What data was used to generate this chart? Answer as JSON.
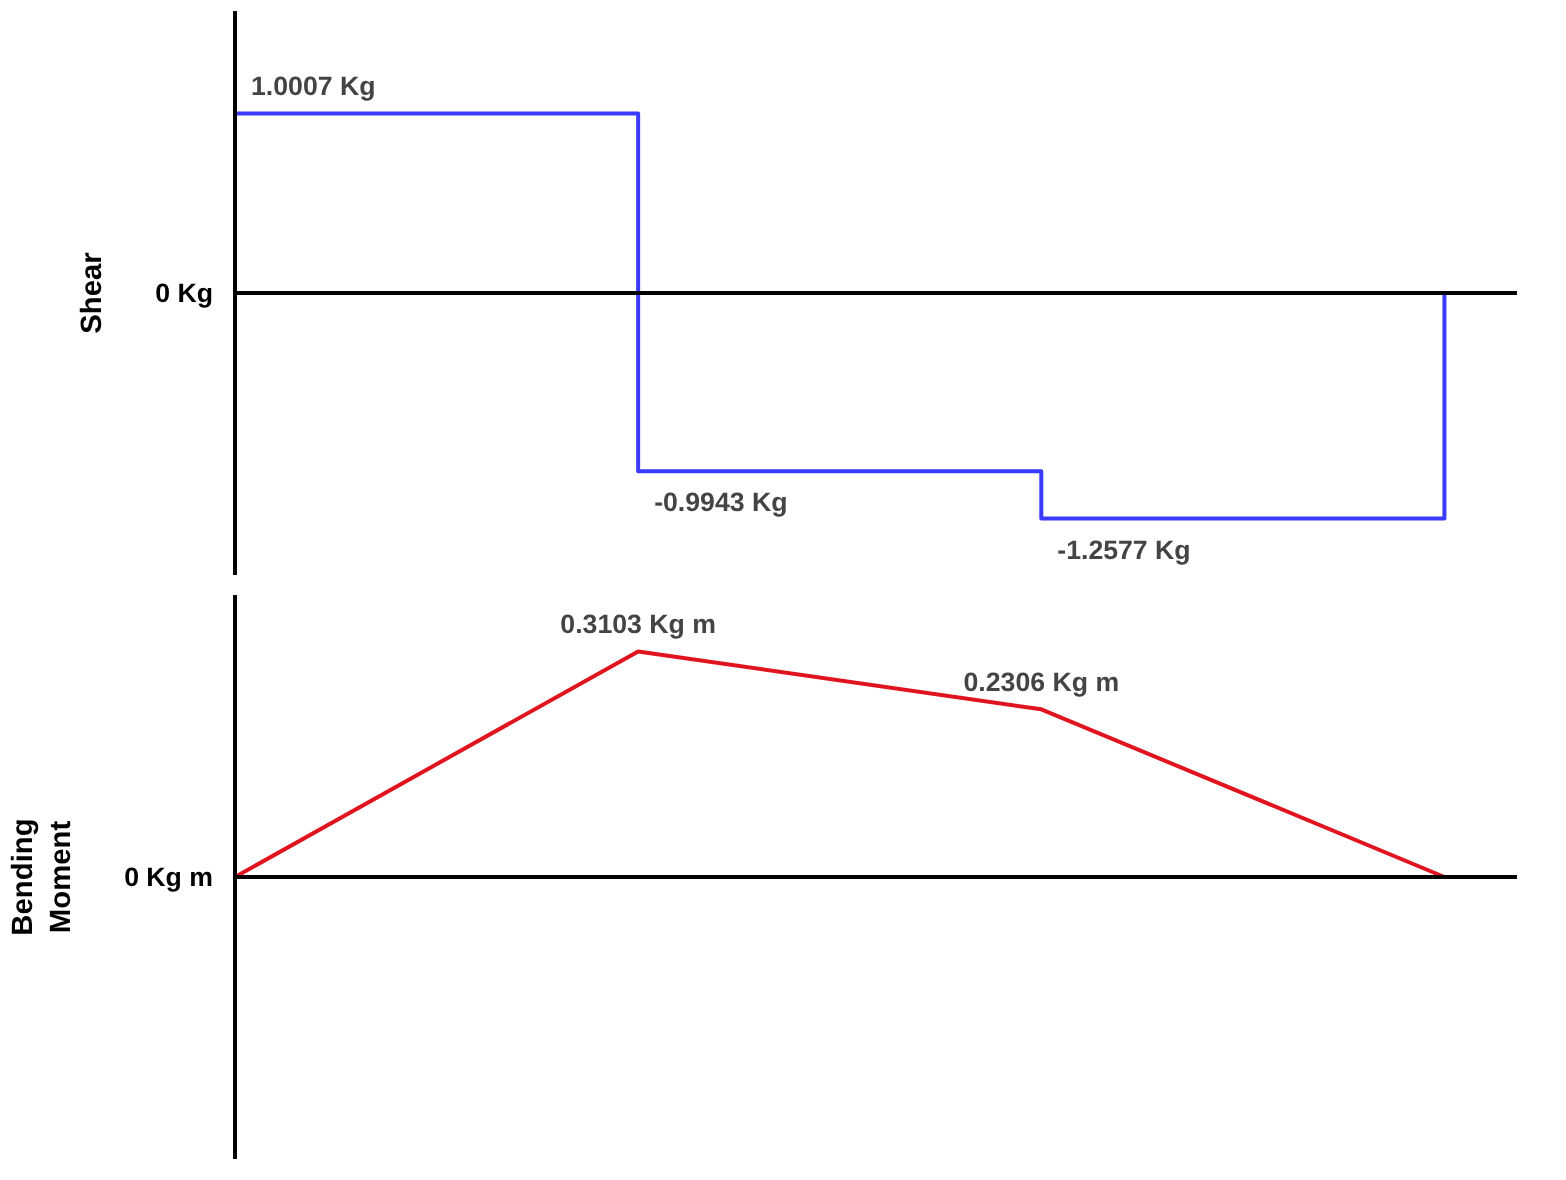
{
  "chart_data": [
    {
      "type": "step",
      "ylabel": "Shear",
      "categories": [
        null,
        null,
        null,
        null
      ],
      "values": [
        1.0007,
        -0.9943,
        -1.2577,
        0
      ],
      "color": "#3b3bff",
      "value_labels": [
        "1.0007 Kg",
        "-0.9943 Kg",
        "-1.2577 Kg",
        null
      ],
      "annotations": [
        "0 Kg"
      ]
    },
    {
      "type": "line",
      "ylabel": "Bending Moment",
      "categories": [
        null,
        null,
        null,
        null
      ],
      "values": [
        0,
        0.3103,
        0.2306,
        0
      ],
      "color": "#e0141e",
      "value_labels": [
        null,
        "0.3103 Kg m",
        "0.2306 Kg m",
        null
      ],
      "annotations": [
        "0 Kg m"
      ]
    }
  ]
}
